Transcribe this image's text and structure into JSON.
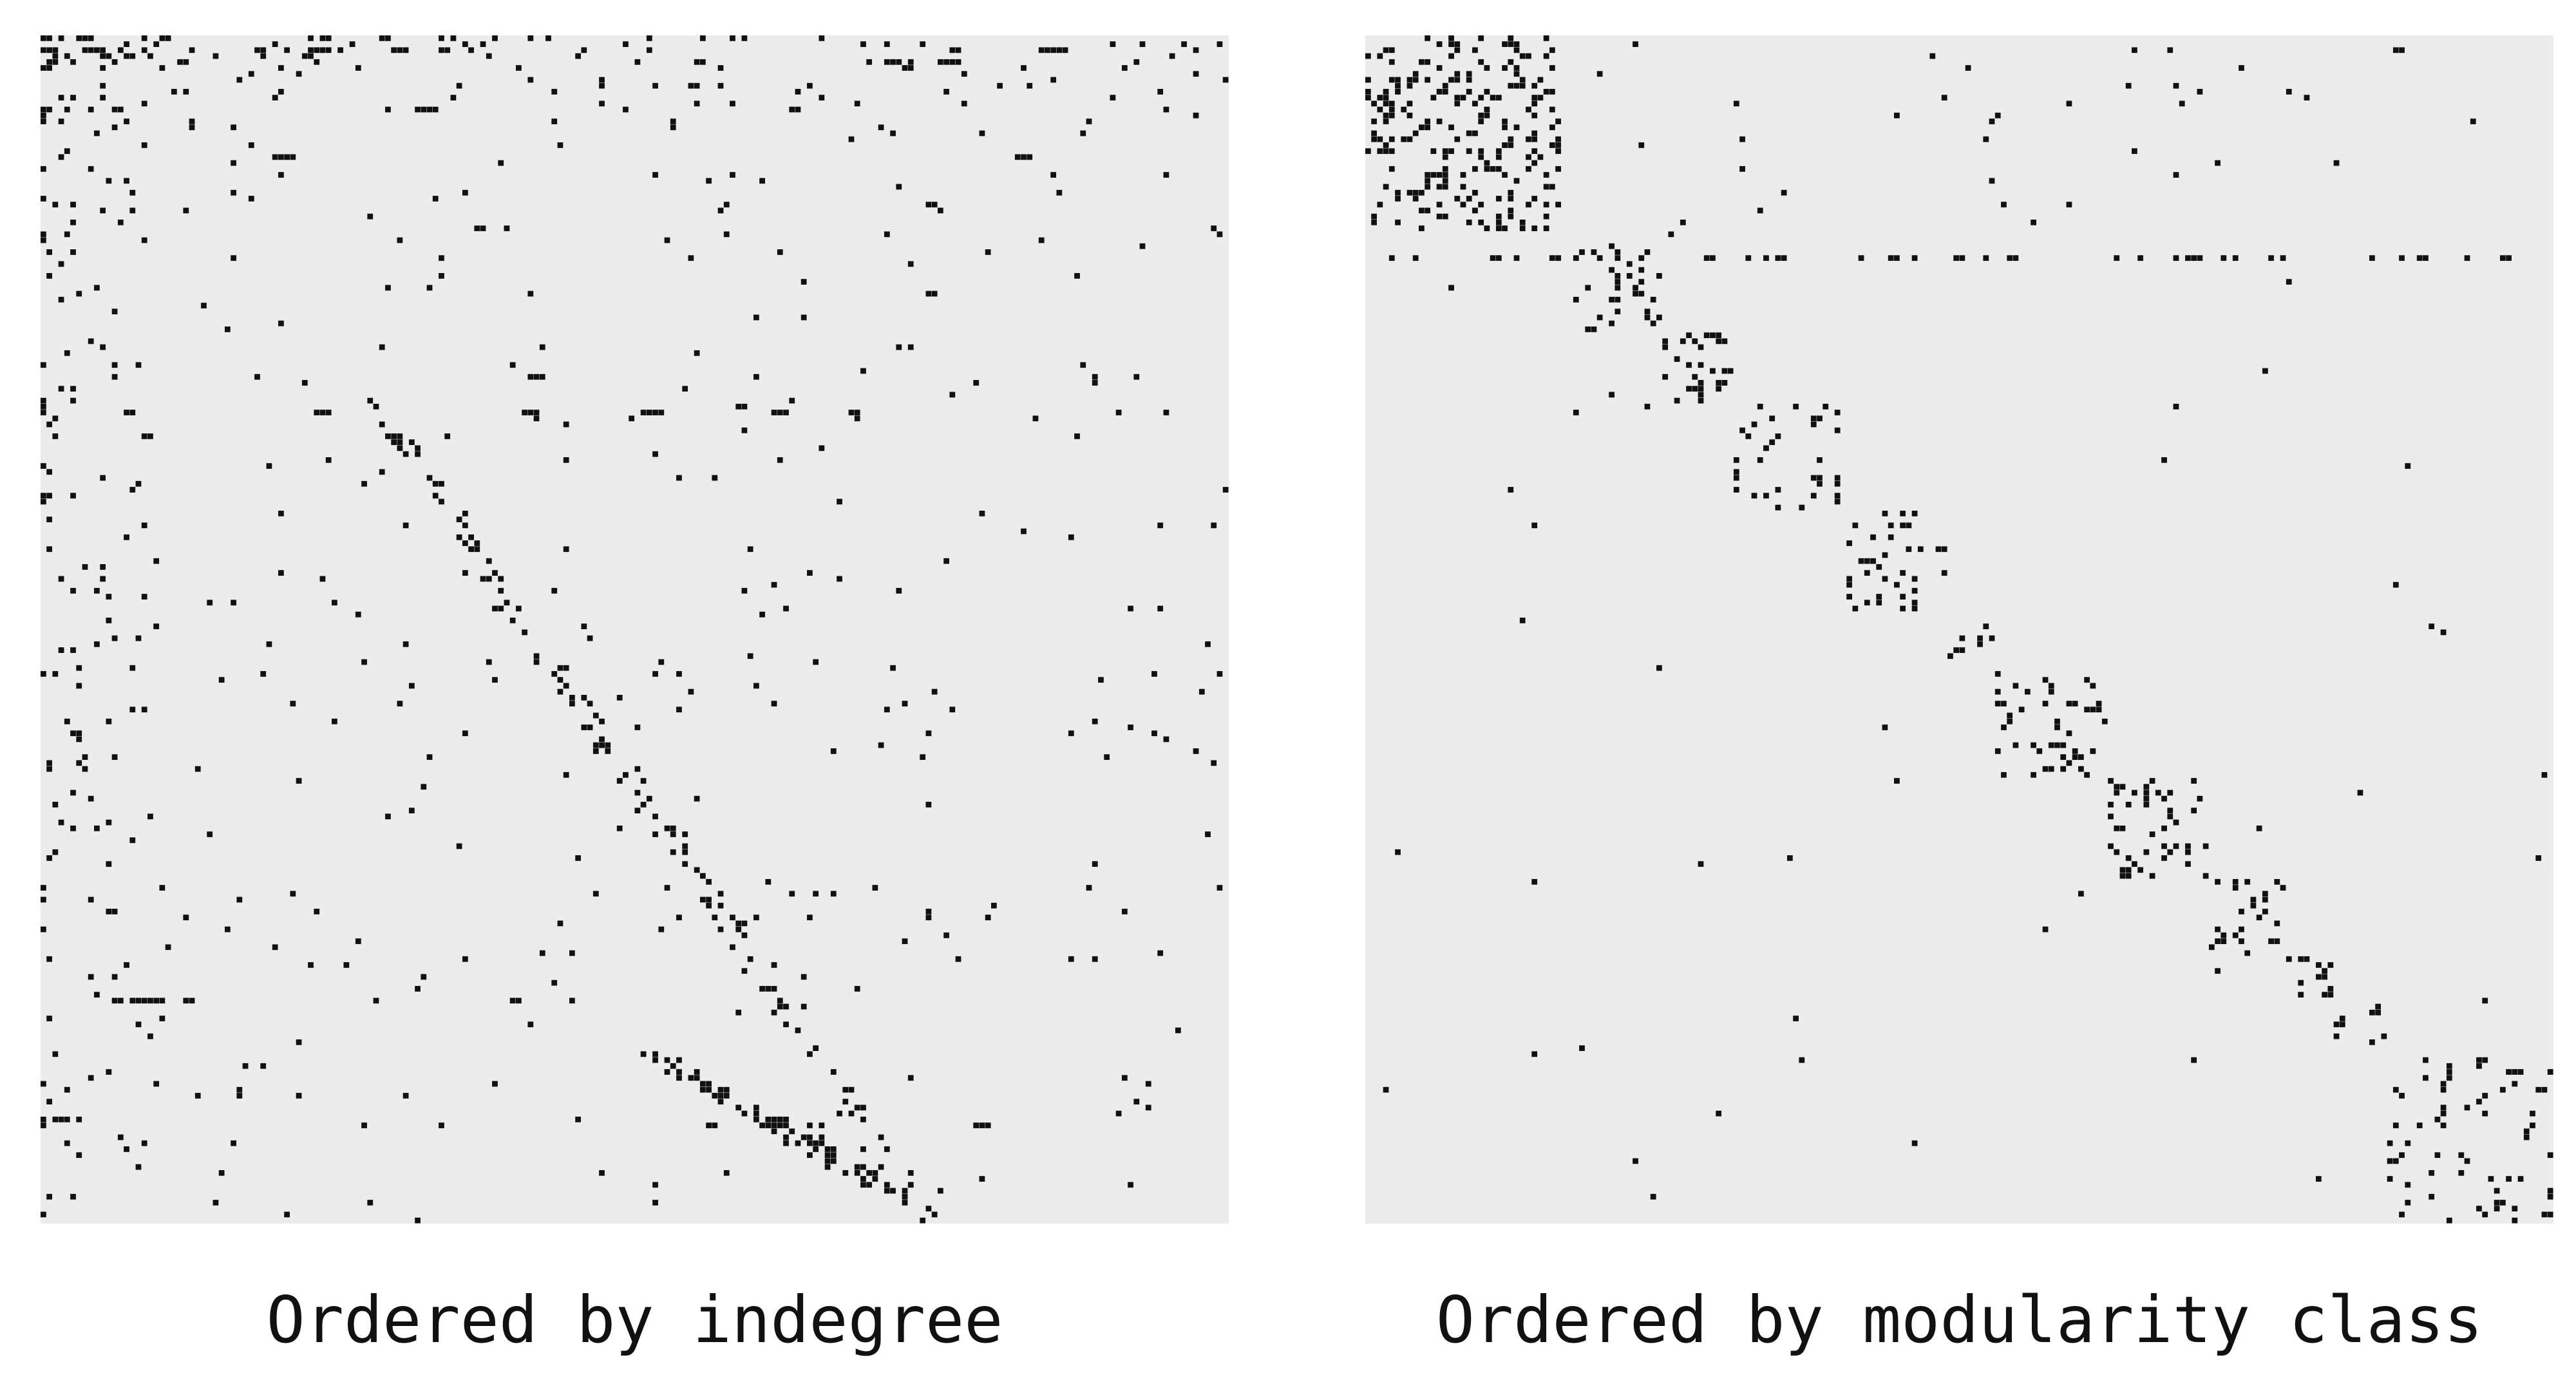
{
  "panels": [
    {
      "caption": "Ordered by indegree"
    },
    {
      "caption": "Ordered by modularity class"
    }
  ],
  "colors": {
    "background": "#ffffff",
    "matrix_background": "#ececec",
    "cell": "#111111",
    "caption": "#111111"
  }
}
